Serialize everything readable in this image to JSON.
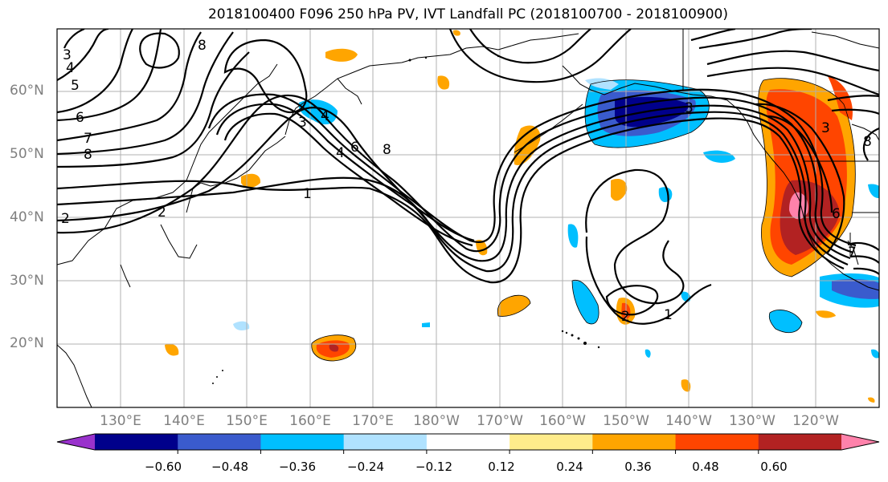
{
  "title": "2018100400 F096 250 hPa PV, IVT Landfall PC (2018100700 - 2018100900)",
  "lat_labels": [
    "60°N",
    "50°N",
    "40°N",
    "30°N",
    "20°N"
  ],
  "lon_labels": [
    "130°E",
    "140°E",
    "150°E",
    "160°E",
    "170°E",
    "180°W",
    "170°W",
    "160°W",
    "150°W",
    "140°W",
    "130°W",
    "120°W"
  ],
  "contour_labels": [
    "3",
    "4",
    "5",
    "6",
    "7",
    "8",
    "1",
    "2",
    "2",
    "4",
    "6",
    "8",
    "8",
    "3",
    "4",
    "3",
    "2",
    "1",
    "6",
    "8",
    "3",
    "7"
  ],
  "colorbar": {
    "colors": [
      "#9932cc",
      "#00008b",
      "#3a5bcd",
      "#00bfff",
      "#b0e2ff",
      "#ffffff",
      "#ffec8b",
      "#ffa500",
      "#ff4500",
      "#b22222",
      "#ff82ab"
    ],
    "tick_labels": [
      "−0.60",
      "−0.48",
      "−0.36",
      "−0.24",
      "−0.12",
      "0.12",
      "0.24",
      "0.36",
      "0.48",
      "0.60"
    ]
  }
}
